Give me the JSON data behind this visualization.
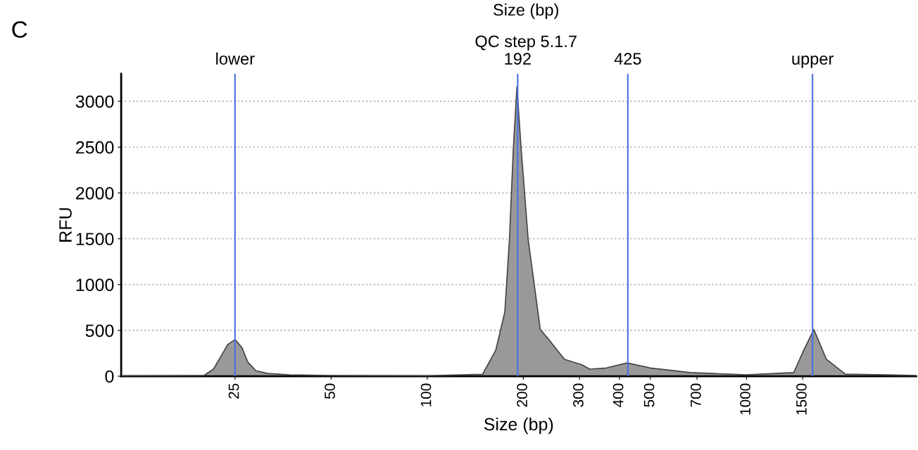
{
  "chart_data": {
    "type": "area",
    "title": "QC step 5.1.7",
    "xlabel": "Size (bp)",
    "ylabel": "RFU",
    "annotations": [
      "C",
      "Size (bp)"
    ],
    "log": "x",
    "x": [
      11,
      20,
      21.4,
      22.7,
      23.7,
      25,
      26.3,
      27.4,
      29.1,
      31.6,
      37,
      50,
      100,
      149,
      164,
      175,
      181,
      186,
      191,
      197,
      207,
      226,
      239,
      269,
      305,
      323,
      364,
      423,
      500,
      666,
      1000,
      1406,
      1512,
      1626,
      1779,
      2040,
      3400
    ],
    "series": [
      {
        "color": "#999999",
        "values": [
          5,
          8,
          77,
          230,
          345,
          400,
          310,
          155,
          60,
          30,
          15,
          8,
          6,
          20,
          285,
          700,
          1500,
          2470,
          3160,
          2470,
          1500,
          510,
          410,
          185,
          125,
          77,
          90,
          145,
          90,
          40,
          15,
          40,
          285,
          510,
          185,
          23,
          8
        ]
      }
    ],
    "xlim": [
      11,
      3400
    ],
    "xticks": [
      25,
      50,
      100,
      200,
      300,
      400,
      500,
      700,
      1000,
      1500
    ],
    "ylim": [
      0,
      3300
    ],
    "yticks": [
      0,
      500,
      1000,
      1500,
      2000,
      2500,
      3000
    ],
    "grid": "y",
    "legend": false,
    "ref_lines": [
      {
        "axis": "x",
        "value": 25,
        "label": "lower",
        "color": "#4a6fe3"
      },
      {
        "axis": "x",
        "value": 192,
        "label": "192",
        "color": "#4a6fe3"
      },
      {
        "axis": "x",
        "value": 425,
        "label": "425",
        "color": "#4a6fe3"
      },
      {
        "axis": "x",
        "value": 1610,
        "label": "upper",
        "color": "#4a6fe3"
      }
    ]
  }
}
